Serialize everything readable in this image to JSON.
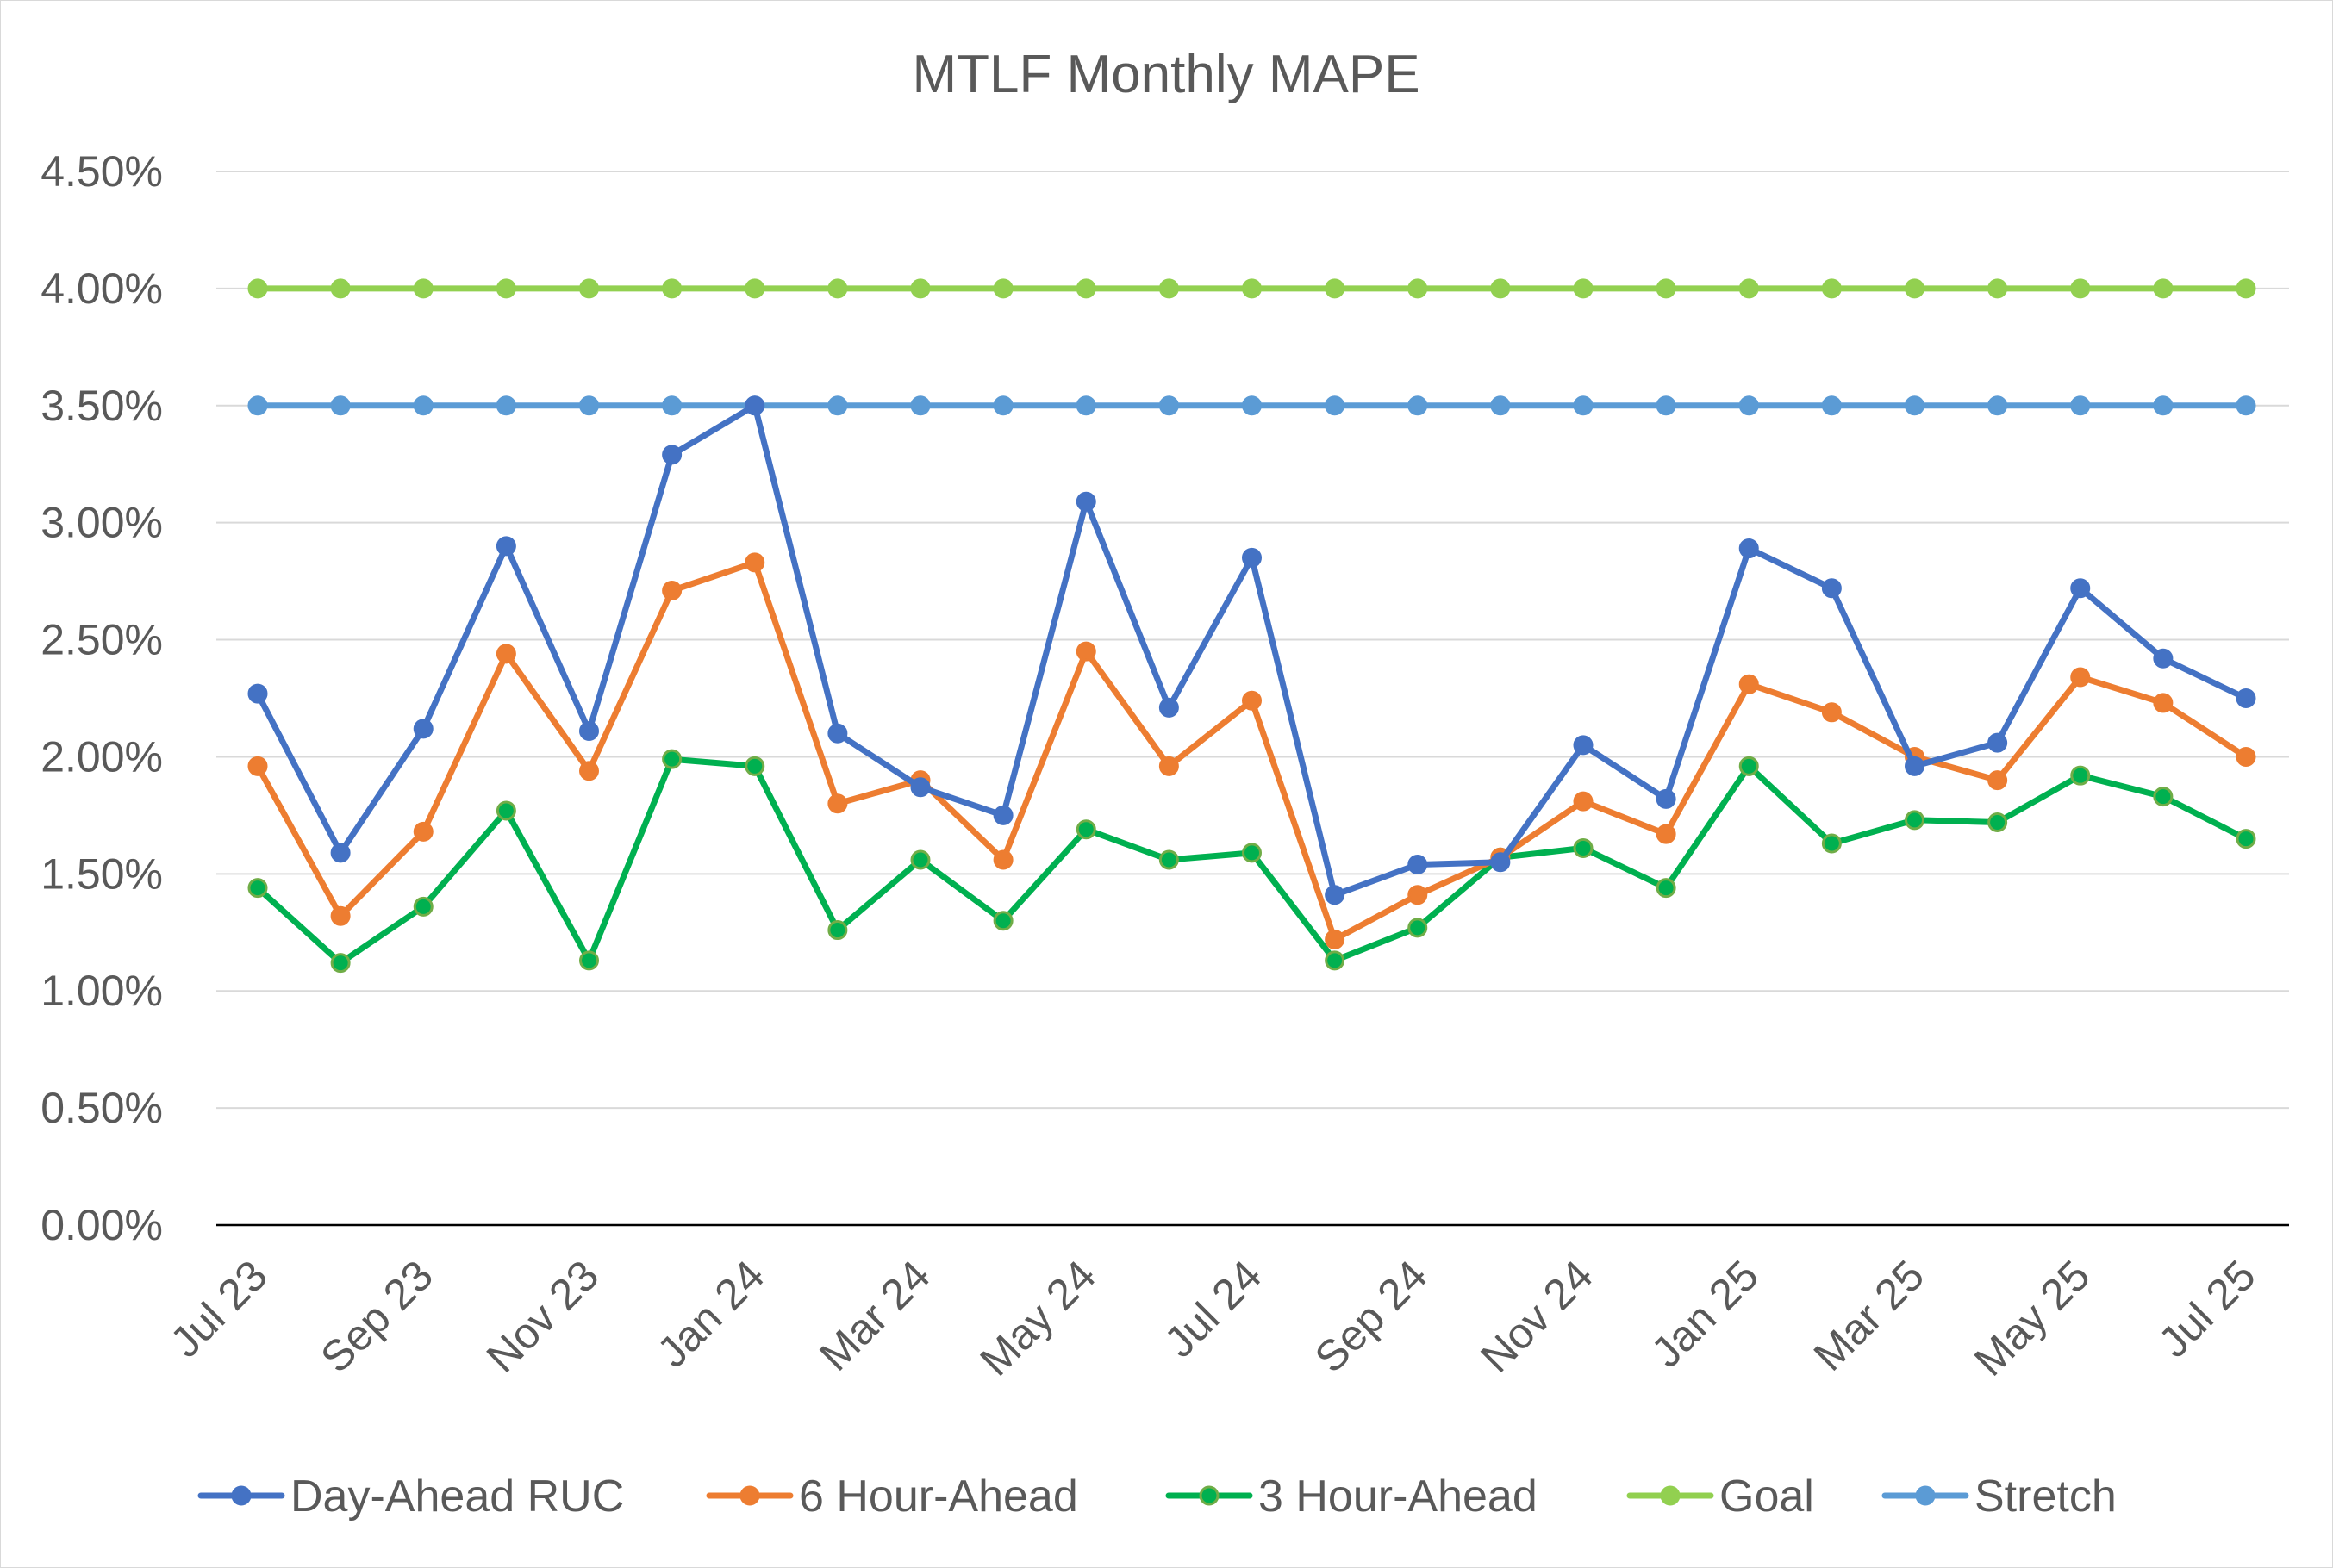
{
  "chart_data": {
    "type": "line",
    "title": "MTLF Monthly MAPE",
    "xlabel": "",
    "ylabel": "",
    "ylim": [
      0,
      4.5
    ],
    "y_ticks": [
      "0.00%",
      "0.50%",
      "1.00%",
      "1.50%",
      "2.00%",
      "2.50%",
      "3.00%",
      "3.50%",
      "4.00%",
      "4.50%"
    ],
    "grid": true,
    "legend_position": "bottom",
    "categories": [
      "Jul 23",
      "Aug 23",
      "Sep 23",
      "Oct 23",
      "Nov 23",
      "Dec 23",
      "Jan 24",
      "Feb 24",
      "Mar 24",
      "Apr 24",
      "May 24",
      "Jun 24",
      "Jul 24",
      "Aug 24",
      "Sep 24",
      "Oct 24",
      "Nov 24",
      "Dec 24",
      "Jan 25",
      "Feb 25",
      "Mar 25",
      "Apr 25",
      "May 25",
      "Jun 25",
      "Jul 25"
    ],
    "x_tick_labels": [
      "Jul 23",
      "",
      "Sep 23",
      "",
      "Nov 23",
      "",
      "Jan 24",
      "",
      "Mar 24",
      "",
      "May 24",
      "",
      "Jul 24",
      "",
      "Sep 24",
      "",
      "Nov 24",
      "",
      "Jan 25",
      "",
      "Mar 25",
      "",
      "May 25",
      "",
      "Jul 25"
    ],
    "series": [
      {
        "name": "Day-Ahead RUC",
        "color": "#4472c4",
        "marker_edge": "#4472c4",
        "values": [
          2.27,
          1.59,
          2.12,
          2.9,
          2.11,
          3.29,
          3.5,
          2.1,
          1.87,
          1.75,
          3.09,
          2.21,
          2.85,
          1.41,
          1.54,
          1.55,
          2.05,
          1.82,
          2.89,
          2.72,
          1.96,
          2.06,
          2.72,
          2.42,
          2.25
        ]
      },
      {
        "name": "6 Hour-Ahead",
        "color": "#ed7d31",
        "marker_edge": "#ed7d31",
        "values": [
          1.96,
          1.32,
          1.68,
          2.44,
          1.94,
          2.71,
          2.83,
          1.8,
          1.9,
          1.56,
          2.45,
          1.96,
          2.24,
          1.22,
          1.41,
          1.57,
          1.81,
          1.67,
          2.31,
          2.19,
          2.0,
          1.9,
          2.34,
          2.23,
          2.0
        ]
      },
      {
        "name": "3 Hour-Ahead",
        "color": "#00b050",
        "marker_edge": "#70ad47",
        "values": [
          1.44,
          1.12,
          1.36,
          1.77,
          1.13,
          1.99,
          1.96,
          1.26,
          1.56,
          1.3,
          1.69,
          1.56,
          1.59,
          1.13,
          1.27,
          1.57,
          1.61,
          1.44,
          1.96,
          1.63,
          1.73,
          1.72,
          1.92,
          1.83,
          1.65
        ]
      },
      {
        "name": "Goal",
        "color": "#92d050",
        "marker_edge": "#92d050",
        "values": [
          4.0,
          4.0,
          4.0,
          4.0,
          4.0,
          4.0,
          4.0,
          4.0,
          4.0,
          4.0,
          4.0,
          4.0,
          4.0,
          4.0,
          4.0,
          4.0,
          4.0,
          4.0,
          4.0,
          4.0,
          4.0,
          4.0,
          4.0,
          4.0,
          4.0
        ]
      },
      {
        "name": "Stretch",
        "color": "#5b9bd5",
        "marker_edge": "#5b9bd5",
        "values": [
          3.5,
          3.5,
          3.5,
          3.5,
          3.5,
          3.5,
          3.5,
          3.5,
          3.5,
          3.5,
          3.5,
          3.5,
          3.5,
          3.5,
          3.5,
          3.5,
          3.5,
          3.5,
          3.5,
          3.5,
          3.5,
          3.5,
          3.5,
          3.5,
          3.5
        ]
      }
    ]
  },
  "colors": {
    "gridline": "#d9d9d9",
    "axis_line": "#000000",
    "text": "#595959",
    "background": "#ffffff"
  }
}
